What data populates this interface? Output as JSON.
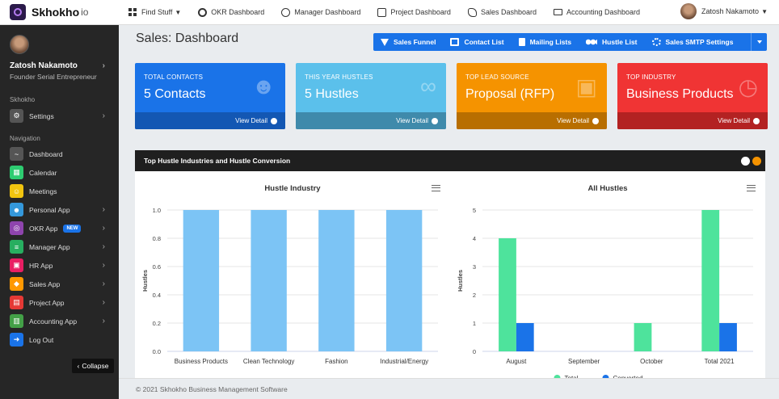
{
  "brand": {
    "name": "Skhokho",
    "suffix": "io"
  },
  "topnav": [
    {
      "label": "Find Stuff",
      "icon": "grid-icon"
    },
    {
      "label": "OKR Dashboard",
      "icon": "target-icon"
    },
    {
      "label": "Manager Dashboard",
      "icon": "user-circle-icon"
    },
    {
      "label": "Project Dashboard",
      "icon": "edit-icon"
    },
    {
      "label": "Sales Dashboard",
      "icon": "handshake-icon"
    },
    {
      "label": "Accounting Dashboard",
      "icon": "money-icon"
    }
  ],
  "user": {
    "name": "Zatosh Nakamoto",
    "role": "Founder Serial Entrepreneur"
  },
  "sidebar": {
    "section_skhokho": "Skhokho",
    "settings_label": "Settings",
    "section_navigation": "Navigation",
    "items": [
      {
        "label": "Dashboard",
        "color": "#555555",
        "icon": "pulse-icon"
      },
      {
        "label": "Calendar",
        "color": "#2ecc71",
        "icon": "calendar-icon"
      },
      {
        "label": "Meetings",
        "color": "#f1c40f",
        "icon": "people-icon"
      },
      {
        "label": "Personal App",
        "color": "#3498db",
        "icon": "person-icon"
      },
      {
        "label": "OKR App",
        "color": "#8e44ad",
        "icon": "target-icon",
        "badge": "NEW"
      },
      {
        "label": "Manager App",
        "color": "#27ae60",
        "icon": "layers-icon"
      },
      {
        "label": "HR App",
        "color": "#e91e63",
        "icon": "id-card-icon"
      },
      {
        "label": "Sales App",
        "color": "#ff9800",
        "icon": "tag-icon"
      },
      {
        "label": "Project App",
        "color": "#e53935",
        "icon": "clipboard-icon"
      },
      {
        "label": "Accounting App",
        "color": "#43a047",
        "icon": "calculator-icon"
      },
      {
        "label": "Log Out",
        "color": "#1a73e8",
        "icon": "logout-icon"
      }
    ],
    "collapse_label": "Collapse"
  },
  "page": {
    "title": "Sales: Dashboard"
  },
  "toolbar": [
    {
      "label": "Sales Funnel",
      "icon": "funnel-icon"
    },
    {
      "label": "Contact List",
      "icon": "list-icon"
    },
    {
      "label": "Mailing Lists",
      "icon": "file-icon"
    },
    {
      "label": "Hustle List",
      "icon": "users-icon"
    },
    {
      "label": "Sales SMTP Settings",
      "icon": "gears-icon"
    }
  ],
  "cards": [
    {
      "label": "TOTAL CONTACTS",
      "value": "5 Contacts",
      "link": "View Detail",
      "color": "#1a73e8",
      "footer_color": "#1357b3",
      "icon": "users-icon"
    },
    {
      "label": "THIS YEAR HUSTLES",
      "value": "5 Hustles",
      "link": "View Detail",
      "color": "#5bc0eb",
      "footer_color": "#3f8aab",
      "icon": "link-icon"
    },
    {
      "label": "TOP LEAD SOURCE",
      "value": "Proposal (RFP)",
      "link": "View Detail",
      "color": "#f59300",
      "footer_color": "#b86e00",
      "icon": "monitor-icon"
    },
    {
      "label": "TOP INDUSTRY",
      "value": "Business Products",
      "link": "View Detail",
      "color": "#f03434",
      "footer_color": "#b32222",
      "icon": "clock-icon"
    }
  ],
  "panel": {
    "title": "Top Hustle Industries and Hustle Conversion"
  },
  "chart_data": [
    {
      "type": "bar",
      "title": "Hustle Industry",
      "ylabel": "Hustles",
      "categories": [
        "Business Products",
        "Clean Technology",
        "Fashion",
        "Industrial/Energy"
      ],
      "values": [
        1.0,
        1.0,
        1.0,
        1.0
      ],
      "ylim": [
        0,
        1.0
      ],
      "yticks": [
        "0.0",
        "0.2",
        "0.4",
        "0.6",
        "0.8",
        "1.0"
      ],
      "color": "#7cc4f5",
      "grid": true
    },
    {
      "type": "bar",
      "title": "All Hustles",
      "ylabel": "Hustles",
      "categories": [
        "August",
        "September",
        "October",
        "Total 2021"
      ],
      "series": [
        {
          "name": "Total",
          "values": [
            4,
            0,
            1,
            5
          ],
          "color": "#4ee39c"
        },
        {
          "name": "Converted",
          "values": [
            1,
            0,
            0,
            1
          ],
          "color": "#1a73e8"
        }
      ],
      "ylim": [
        0,
        5
      ],
      "yticks": [
        "0",
        "1",
        "2",
        "3",
        "4",
        "5"
      ],
      "legend": "bottom",
      "grid": true
    }
  ],
  "footer": {
    "text": "© 2021 Skhokho Business Management Software"
  }
}
